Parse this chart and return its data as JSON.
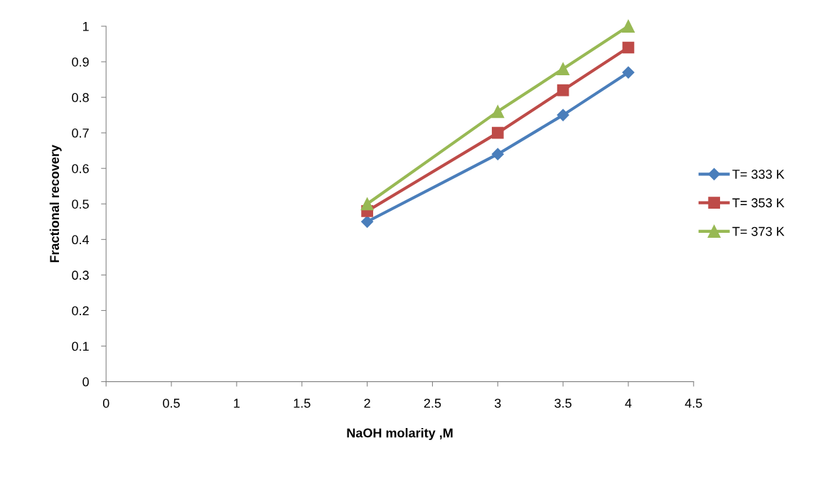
{
  "chart_data": {
    "type": "line",
    "xlabel": "NaOH molarity ,M",
    "ylabel": "Fractional recovery",
    "x": [
      2,
      3,
      3.5,
      4
    ],
    "series": [
      {
        "name": "T= 333 K",
        "color": "#4a7ebb",
        "marker": "diamond",
        "values": [
          0.45,
          0.64,
          0.75,
          0.87
        ]
      },
      {
        "name": "T= 353 K",
        "color": "#be4b48",
        "marker": "square",
        "values": [
          0.48,
          0.7,
          0.82,
          0.94
        ]
      },
      {
        "name": "T= 373 K",
        "color": "#98b954",
        "marker": "triangle",
        "values": [
          0.5,
          0.76,
          0.88,
          1.0
        ]
      }
    ],
    "xlim": [
      0,
      4.5
    ],
    "xticks": [
      0,
      0.5,
      1,
      1.5,
      2,
      2.5,
      3,
      3.5,
      4,
      4.5
    ],
    "ylim": [
      0,
      1
    ],
    "yticks": [
      0,
      0.1,
      0.2,
      0.3,
      0.4,
      0.5,
      0.6,
      0.7,
      0.8,
      0.9,
      1
    ],
    "grid": false,
    "legend": "right",
    "line_style": "solid"
  }
}
